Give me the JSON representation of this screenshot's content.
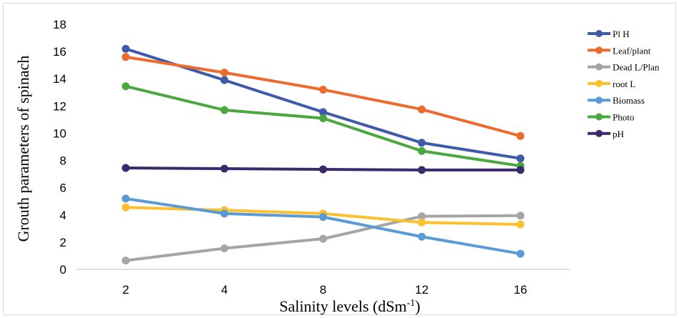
{
  "chart_data": {
    "type": "line",
    "categories": [
      "2",
      "4",
      "8",
      "12",
      "16"
    ],
    "xlabel": "Salinity levels (dSm",
    "xlabel_sup": "-1",
    "xlabel_end": ")",
    "ylabel": "Grouth parameters of spinach",
    "ylim": [
      0,
      18
    ],
    "yticks": [
      "0",
      "2",
      "4",
      "6",
      "8",
      "10",
      "12",
      "14",
      "16",
      "18"
    ],
    "grid": false,
    "legend_position": "right",
    "series": [
      {
        "name": "Pl H",
        "color": "#3e5ba9",
        "values": [
          16.2,
          13.9,
          11.55,
          9.3,
          8.15
        ]
      },
      {
        "name": "Leaf/plant",
        "color": "#ee6b2f",
        "values": [
          15.6,
          14.45,
          13.2,
          11.75,
          9.8
        ]
      },
      {
        "name": "Dead L/Plan",
        "color": "#a5a5a5",
        "values": [
          0.65,
          1.55,
          2.25,
          3.9,
          3.95
        ]
      },
      {
        "name": "root L",
        "color": "#fcbf2e",
        "values": [
          4.55,
          4.35,
          4.1,
          3.45,
          3.3
        ]
      },
      {
        "name": "Biomass",
        "color": "#5b9bd5",
        "values": [
          5.2,
          4.1,
          3.85,
          2.4,
          1.15
        ]
      },
      {
        "name": "Photo",
        "color": "#4aa83f",
        "values": [
          13.45,
          11.7,
          11.1,
          8.7,
          7.6
        ]
      },
      {
        "name": "pH",
        "color": "#3b2a6b",
        "values": [
          7.45,
          7.4,
          7.35,
          7.3,
          7.3
        ]
      }
    ]
  }
}
